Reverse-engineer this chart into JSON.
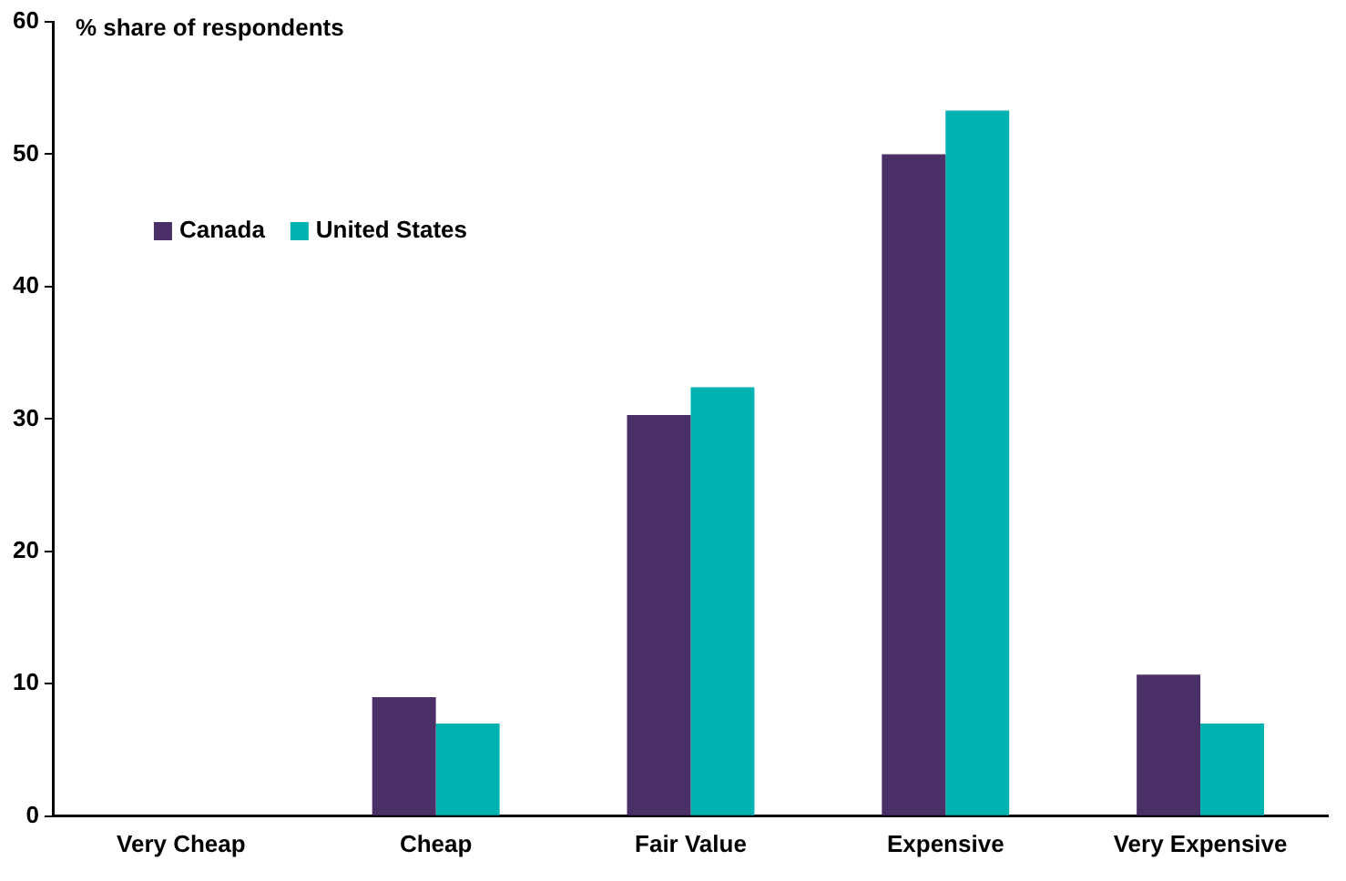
{
  "chart_data": {
    "type": "bar",
    "ylabel": "% share of respondents",
    "categories": [
      "Very Cheap",
      "Cheap",
      "Fair Value",
      "Expensive",
      "Very Expensive"
    ],
    "series": [
      {
        "name": "Canada",
        "color": "#4b3068",
        "values": [
          0,
          9,
          30.3,
          50,
          10.7
        ]
      },
      {
        "name": "United States",
        "color": "#00b2b0",
        "values": [
          0,
          7,
          32.4,
          53.3,
          7
        ]
      }
    ],
    "ylim": [
      0,
      60
    ],
    "yticks": [
      0,
      10,
      20,
      30,
      40,
      50,
      60
    ],
    "grid": false,
    "legend": "top left"
  }
}
